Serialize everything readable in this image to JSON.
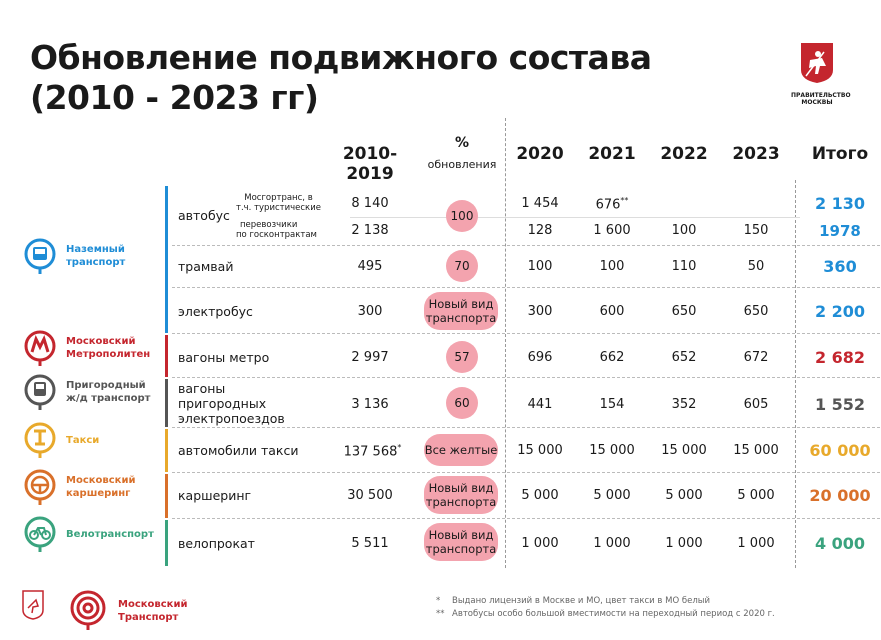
{
  "title_line1": "Обновление подвижного состава",
  "title_line2": "(2010 - 2023 гг)",
  "gov_caption": "ПРАВИТЕЛЬСТВО МОСКВЫ",
  "headers": {
    "period": "2010- 2019",
    "pct_sym": "%",
    "pct_word": "обновления",
    "y2020": "2020",
    "y2021": "2021",
    "y2022": "2022",
    "y2023": "2023",
    "total": "Итого"
  },
  "categories": [
    {
      "l1": "Наземный",
      "l2": "транспорт",
      "color": "#1f8dd6",
      "icon": "bus-icon"
    },
    {
      "l1": "Московский",
      "l2": "Метрополитен",
      "color": "#c4262e",
      "icon": "metro-icon"
    },
    {
      "l1": "Пригородный",
      "l2": "ж/д транспорт",
      "color": "#555555",
      "icon": "train-icon"
    },
    {
      "l1": "Такси",
      "l2": "",
      "color": "#e8a92b",
      "icon": "taxi-icon"
    },
    {
      "l1": "Московский",
      "l2": "каршеринг",
      "color": "#d9702a",
      "icon": "steering-wheel-icon"
    },
    {
      "l1": "Велотранспорт",
      "l2": "",
      "color": "#3aa37e",
      "icon": "bicycle-icon"
    }
  ],
  "rows": {
    "bus": {
      "name": "автобус",
      "sub1": "Мосгортранс, в",
      "sub1b": "т.ч. туристические",
      "sub2": "перевозчики",
      "sub2b": "по госконтрактам",
      "a_period": "8 140",
      "a_2020": "1 454",
      "a_2021": "676",
      "a_2021_mark": "**",
      "a_total": "2 130",
      "b_period": "2 138",
      "b_2020": "128",
      "b_2021": "1 600",
      "b_2022": "100",
      "b_2023": "150",
      "b_total": "1978",
      "pct": "100"
    },
    "tram": {
      "name": "трамвай",
      "period": "495",
      "pct": "70",
      "y2020": "100",
      "y2021": "100",
      "y2022": "110",
      "y2023": "50",
      "total": "360"
    },
    "ebus": {
      "name": "электробус",
      "period": "300",
      "pct1": "Новый вид",
      "pct2": "транспорта",
      "y2020": "300",
      "y2021": "600",
      "y2022": "650",
      "y2023": "650",
      "total": "2 200"
    },
    "metro": {
      "name": "вагоны метро",
      "period": "2 997",
      "pct": "57",
      "y2020": "696",
      "y2021": "662",
      "y2022": "652",
      "y2023": "672",
      "total": "2 682"
    },
    "rail": {
      "name1": "вагоны",
      "name2": "пригородных",
      "name3": "электропоездов",
      "period": "3 136",
      "pct": "60",
      "y2020": "441",
      "y2021": "154",
      "y2022": "352",
      "y2023": "605",
      "total": "1 552"
    },
    "taxi": {
      "name": "автомобили такси",
      "period": "137 568",
      "period_mark": "*",
      "pct": "Все желтые",
      "y2020": "15 000",
      "y2021": "15 000",
      "y2022": "15 000",
      "y2023": "15 000",
      "total": "60 000"
    },
    "carsh": {
      "name": "каршеринг",
      "period": "30 500",
      "pct1": "Новый вид",
      "pct2": "транспорта",
      "y2020": "5 000",
      "y2021": "5 000",
      "y2022": "5 000",
      "y2023": "5 000",
      "total": "20 000"
    },
    "bike": {
      "name": "велопрокат",
      "period": "5 511",
      "pct1": "Новый вид",
      "pct2": "транспорта",
      "y2020": "1 000",
      "y2021": "1 000",
      "y2022": "1 000",
      "y2023": "1 000",
      "total": "4 000"
    }
  },
  "footer": {
    "brand1": "Московский",
    "brand2": "Транспорт",
    "note1_mark": "*",
    "note1": "Выдано лицензий в Москве и МО, цвет такси в МО белый",
    "note2_mark": "**",
    "note2": "Автобусы особо большой вместимости на переходный период с 2020 г."
  },
  "colors": {
    "pill": "#f3a3ae",
    "blue": "#1f8dd6",
    "red": "#c4262e",
    "gray": "#555555",
    "yellow": "#e8a92b",
    "orange": "#d9702a",
    "green": "#3aa37e"
  }
}
